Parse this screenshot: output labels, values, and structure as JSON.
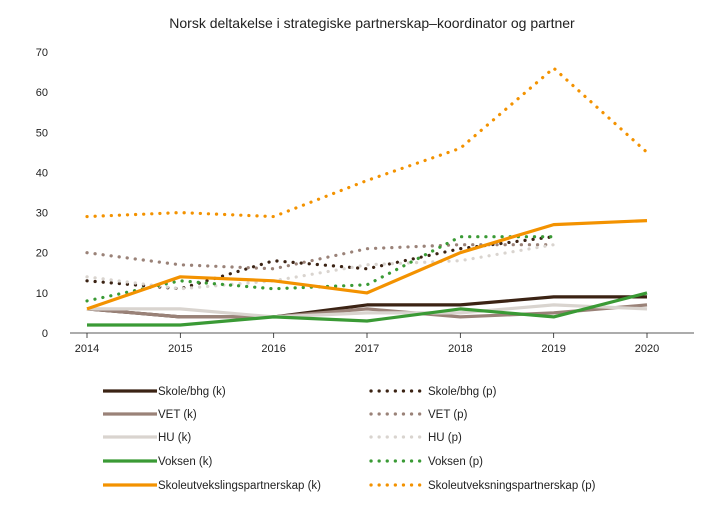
{
  "chart_data": {
    "type": "line",
    "title": "Norsk deltakelse i strategiske partnerskap–koordinator og partner",
    "xlabel": "",
    "ylabel": "",
    "x": [
      "2014",
      "2015",
      "2016",
      "2017",
      "2018",
      "2019",
      "2020"
    ],
    "ylim": [
      0,
      70
    ],
    "yticks": [
      0,
      10,
      20,
      30,
      40,
      50,
      60,
      70
    ],
    "grid": false,
    "legend_position": "bottom",
    "series": [
      {
        "name": "Skole/bhg (k)",
        "color": "#3b2314",
        "style": "solid",
        "values": [
          6,
          4,
          4,
          7,
          7,
          9,
          9
        ]
      },
      {
        "name": "Skole/bhg (p)",
        "color": "#3b2314",
        "style": "dotted",
        "values": [
          13,
          11,
          18,
          16,
          21,
          24,
          null
        ]
      },
      {
        "name": "VET (k)",
        "color": "#9a8278",
        "style": "solid",
        "values": [
          6,
          4,
          4,
          6,
          4,
          5,
          7
        ]
      },
      {
        "name": "VET (p)",
        "color": "#9a8278",
        "style": "dotted",
        "values": [
          20,
          17,
          16,
          21,
          22,
          22,
          null
        ]
      },
      {
        "name": "HU (k)",
        "color": "#d9d4cf",
        "style": "solid",
        "values": [
          6,
          6,
          4,
          5,
          5,
          7,
          6
        ]
      },
      {
        "name": "HU (p)",
        "color": "#d9d4cf",
        "style": "dotted",
        "values": [
          14,
          11,
          13,
          17,
          18,
          22,
          null
        ]
      },
      {
        "name": "Voksen (k)",
        "color": "#3a9a35",
        "style": "solid",
        "values": [
          2,
          2,
          4,
          3,
          6,
          4,
          10
        ]
      },
      {
        "name": "Voksen (p)",
        "color": "#3a9a35",
        "style": "dotted",
        "values": [
          8,
          13,
          11,
          12,
          24,
          24,
          null
        ]
      },
      {
        "name": "Skoleutvekslingspartnerskap (k)",
        "color": "#f39200",
        "style": "solid",
        "values": [
          6,
          14,
          13,
          10,
          20,
          27,
          28
        ]
      },
      {
        "name": "Skoleutveksningspartnerskap (p)",
        "color": "#f39200",
        "style": "dotted",
        "values": [
          29,
          30,
          29,
          38,
          46,
          66,
          45
        ]
      }
    ]
  }
}
